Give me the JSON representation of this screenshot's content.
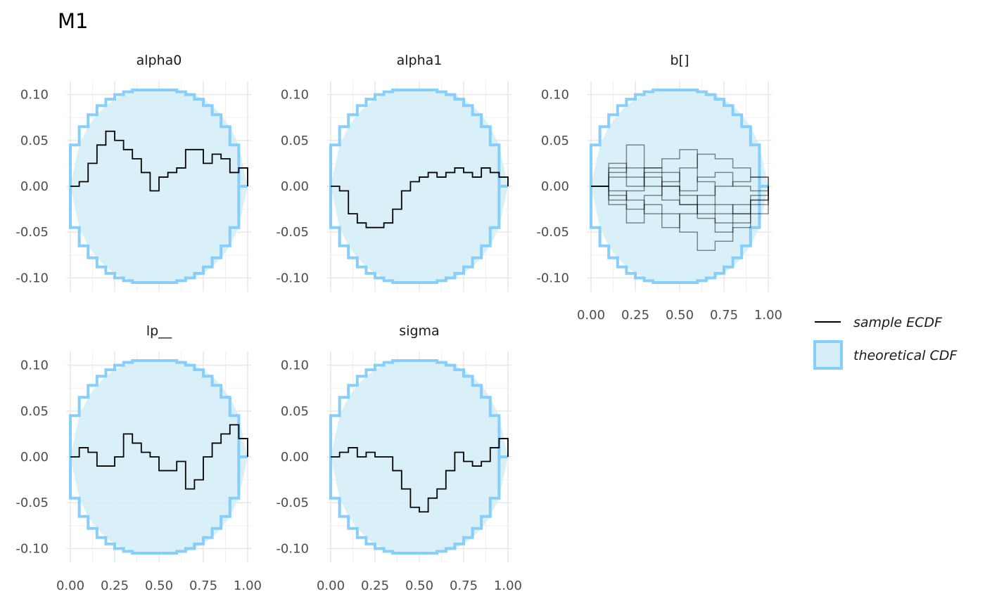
{
  "chart_data": {
    "type": "line",
    "title": "M1",
    "ylim": [
      -0.115,
      0.115
    ],
    "xlim": [
      -0.02,
      1.02
    ],
    "y_ticks": [
      0.1,
      0.05,
      0.0,
      -0.05,
      -0.1
    ],
    "y_tick_labels": [
      "0.10",
      "0.05",
      "0.00",
      "-0.05",
      "-0.10"
    ],
    "x_ticks": [
      0,
      0.25,
      0.5,
      0.75,
      1
    ],
    "x_tick_labels": [
      "0.00",
      "0.25",
      "0.50",
      "0.75",
      "1.00"
    ],
    "grid": true,
    "legend_position": "right",
    "legend": [
      {
        "label": "sample ECDF",
        "kind": "line",
        "color": "#000000"
      },
      {
        "label": "theoretical CDF",
        "kind": "band",
        "color": "#87cefa"
      }
    ],
    "band": {
      "x": [
        0,
        0.05,
        0.1,
        0.15,
        0.2,
        0.25,
        0.3,
        0.35,
        0.4,
        0.45,
        0.5,
        0.55,
        0.6,
        0.65,
        0.7,
        0.75,
        0.8,
        0.85,
        0.9,
        0.95,
        1
      ],
      "upper": [
        0,
        0.045,
        0.065,
        0.078,
        0.088,
        0.095,
        0.1,
        0.103,
        0.105,
        0.105,
        0.105,
        0.105,
        0.105,
        0.103,
        0.1,
        0.095,
        0.088,
        0.078,
        0.065,
        0.045,
        0
      ],
      "lower": [
        0,
        -0.045,
        -0.065,
        -0.078,
        -0.088,
        -0.095,
        -0.1,
        -0.103,
        -0.105,
        -0.105,
        -0.105,
        -0.105,
        -0.105,
        -0.103,
        -0.1,
        -0.095,
        -0.088,
        -0.078,
        -0.065,
        -0.045,
        0
      ],
      "fill": "#d6eef8",
      "stroke": "#87cefa"
    },
    "panels": [
      {
        "name": "alpha0",
        "x_axis_shown": false,
        "series": [
          {
            "x": [
              0,
              0.05,
              0.1,
              0.15,
              0.2,
              0.25,
              0.3,
              0.35,
              0.4,
              0.45,
              0.5,
              0.55,
              0.6,
              0.65,
              0.7,
              0.75,
              0.8,
              0.85,
              0.9,
              0.95,
              1
            ],
            "y": [
              0,
              0.005,
              0.025,
              0.045,
              0.06,
              0.05,
              0.04,
              0.03,
              0.015,
              -0.005,
              0.01,
              0.015,
              0.02,
              0.04,
              0.04,
              0.025,
              0.035,
              0.03,
              0.015,
              0.02,
              0
            ]
          }
        ]
      },
      {
        "name": "alpha1",
        "x_axis_shown": false,
        "series": [
          {
            "x": [
              0,
              0.05,
              0.1,
              0.15,
              0.2,
              0.25,
              0.3,
              0.35,
              0.4,
              0.45,
              0.5,
              0.55,
              0.6,
              0.65,
              0.7,
              0.75,
              0.8,
              0.85,
              0.9,
              0.95,
              1
            ],
            "y": [
              0,
              -0.005,
              -0.03,
              -0.04,
              -0.045,
              -0.045,
              -0.04,
              -0.025,
              -0.005,
              0.005,
              0.01,
              0.015,
              0.01,
              0.015,
              0.02,
              0.015,
              0.01,
              0.02,
              0.015,
              0.01,
              0
            ]
          }
        ]
      },
      {
        "name": "b[]",
        "x_axis_shown": true,
        "series": [
          {
            "x": [
              0,
              0.1,
              0.2,
              0.3,
              0.4,
              0.5,
              0.6,
              0.7,
              0.8,
              0.9,
              1
            ],
            "y": [
              0,
              0.02,
              0.045,
              0.02,
              0.03,
              0.04,
              0.005,
              -0.02,
              -0.03,
              -0.015,
              0
            ]
          },
          {
            "x": [
              0,
              0.1,
              0.2,
              0.3,
              0.4,
              0.5,
              0.6,
              0.7,
              0.8,
              0.9,
              1
            ],
            "y": [
              0,
              -0.02,
              -0.04,
              -0.02,
              -0.03,
              -0.05,
              -0.07,
              -0.06,
              -0.04,
              -0.02,
              0
            ]
          },
          {
            "x": [
              0,
              0.1,
              0.2,
              0.3,
              0.4,
              0.5,
              0.6,
              0.7,
              0.8,
              0.9,
              1
            ],
            "y": [
              0,
              0.01,
              0.0,
              0.02,
              0.015,
              -0.01,
              -0.03,
              -0.05,
              -0.045,
              -0.03,
              0
            ]
          },
          {
            "x": [
              0,
              0.1,
              0.2,
              0.3,
              0.4,
              0.5,
              0.6,
              0.7,
              0.8,
              0.9,
              1
            ],
            "y": [
              0,
              -0.01,
              -0.025,
              -0.01,
              0.005,
              0.02,
              0.035,
              0.03,
              0.02,
              0.01,
              0
            ]
          },
          {
            "x": [
              0,
              0.1,
              0.2,
              0.3,
              0.4,
              0.5,
              0.6,
              0.7,
              0.8,
              0.9,
              1
            ],
            "y": [
              0,
              0.015,
              0.02,
              0.0,
              -0.015,
              -0.02,
              -0.01,
              0.0,
              0.005,
              0.01,
              0
            ]
          },
          {
            "x": [
              0,
              0.1,
              0.2,
              0.3,
              0.4,
              0.5,
              0.6,
              0.7,
              0.8,
              0.9,
              1
            ],
            "y": [
              0,
              -0.005,
              -0.015,
              -0.03,
              -0.045,
              -0.03,
              -0.02,
              -0.03,
              -0.02,
              -0.01,
              0
            ]
          },
          {
            "x": [
              0,
              0.1,
              0.2,
              0.3,
              0.4,
              0.5,
              0.6,
              0.7,
              0.8,
              0.9,
              1
            ],
            "y": [
              0,
              0.025,
              0.01,
              0.015,
              0.0,
              -0.005,
              0.01,
              0.015,
              0.0,
              -0.005,
              0
            ]
          },
          {
            "x": [
              0,
              0.1,
              0.2,
              0.3,
              0.4,
              0.5,
              0.6,
              0.7,
              0.8,
              0.9,
              1
            ],
            "y": [
              0,
              -0.015,
              -0.005,
              0.01,
              0.0,
              -0.02,
              -0.035,
              -0.04,
              -0.03,
              -0.015,
              0
            ]
          }
        ]
      },
      {
        "name": "lp__",
        "x_axis_shown": true,
        "series": [
          {
            "x": [
              0,
              0.05,
              0.1,
              0.15,
              0.2,
              0.25,
              0.3,
              0.35,
              0.4,
              0.45,
              0.5,
              0.55,
              0.6,
              0.65,
              0.7,
              0.75,
              0.8,
              0.85,
              0.9,
              0.95,
              1
            ],
            "y": [
              0,
              0.01,
              0.005,
              -0.01,
              -0.01,
              0.0,
              0.025,
              0.015,
              0.005,
              0.0,
              -0.015,
              -0.015,
              -0.005,
              -0.035,
              -0.025,
              0.0,
              0.015,
              0.025,
              0.035,
              0.02,
              0
            ]
          }
        ]
      },
      {
        "name": "sigma",
        "x_axis_shown": true,
        "series": [
          {
            "x": [
              0,
              0.05,
              0.1,
              0.15,
              0.2,
              0.25,
              0.3,
              0.35,
              0.4,
              0.45,
              0.5,
              0.55,
              0.6,
              0.65,
              0.7,
              0.75,
              0.8,
              0.85,
              0.9,
              0.95,
              1
            ],
            "y": [
              0,
              0.005,
              0.01,
              0.0,
              0.005,
              0.0,
              0.0,
              -0.015,
              -0.035,
              -0.055,
              -0.06,
              -0.045,
              -0.035,
              -0.015,
              0.005,
              -0.005,
              -0.01,
              -0.005,
              0.01,
              0.02,
              0
            ]
          }
        ]
      }
    ]
  }
}
